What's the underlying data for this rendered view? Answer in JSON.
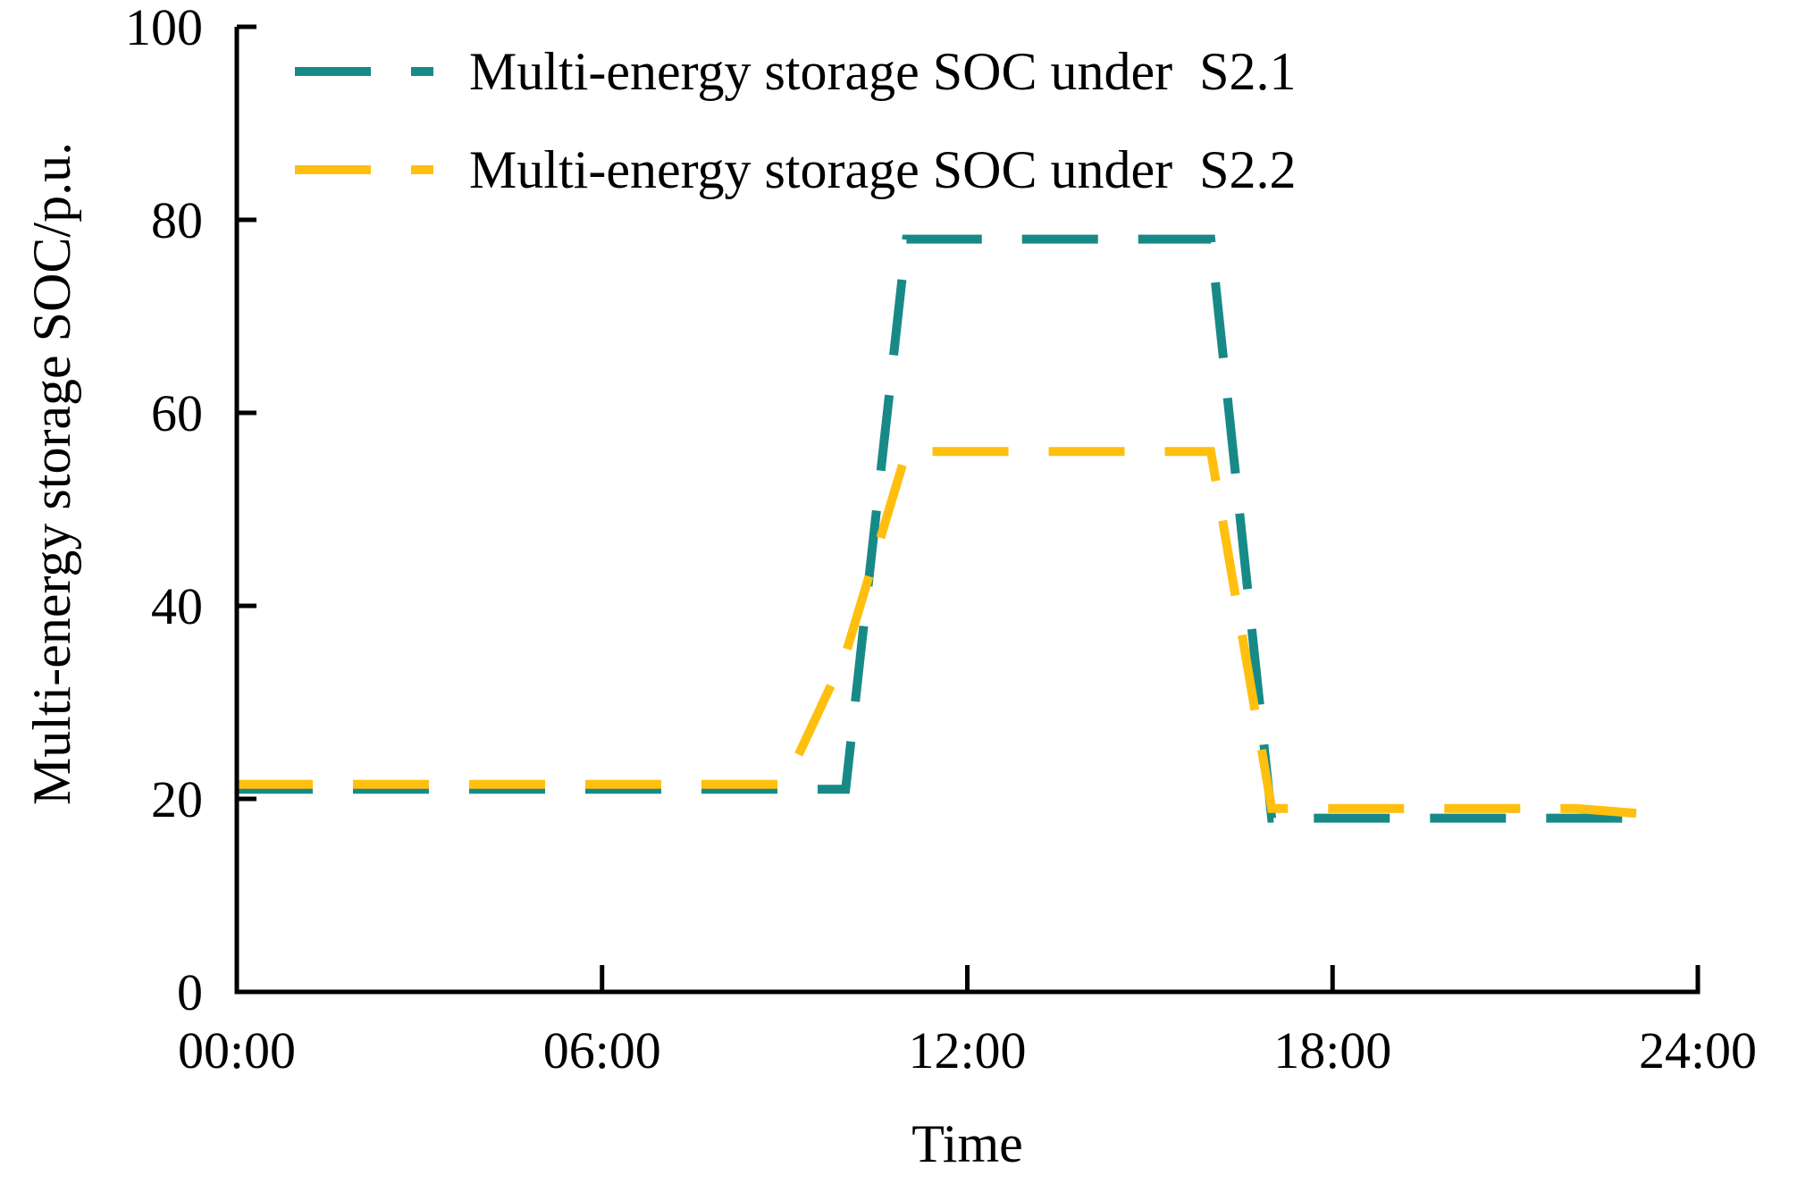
{
  "chart_data": {
    "type": "line",
    "title": "",
    "xlabel": "Time",
    "ylabel": "Multi-energy storage SOC/p.u.",
    "xlim": [
      0,
      24
    ],
    "ylim": [
      0,
      100
    ],
    "x_ticks": [
      {
        "value": 0,
        "label": "00:00"
      },
      {
        "value": 6,
        "label": "06:00"
      },
      {
        "value": 12,
        "label": "12:00"
      },
      {
        "value": 18,
        "label": "18:00"
      },
      {
        "value": 24,
        "label": "24:00"
      }
    ],
    "y_ticks": [
      {
        "value": 0,
        "label": "0"
      },
      {
        "value": 20,
        "label": "20"
      },
      {
        "value": 40,
        "label": "40"
      },
      {
        "value": 60,
        "label": "60"
      },
      {
        "value": 80,
        "label": "80"
      },
      {
        "value": 100,
        "label": "100"
      }
    ],
    "legend_position": "top-left",
    "series": [
      {
        "name": "Multi-energy storage SOC under  S2.1",
        "color": "#178A87",
        "x": [
          0,
          10,
          11,
          12,
          13,
          14,
          15,
          16,
          17,
          18,
          19,
          20,
          21,
          22,
          23
        ],
        "values": [
          21,
          21,
          78,
          78,
          78,
          78,
          78,
          78,
          18,
          18,
          18,
          18,
          18,
          18,
          18
        ]
      },
      {
        "name": "Multi-energy storage SOC under  S2.2",
        "color": "#FFBF0F",
        "x": [
          0,
          9,
          10,
          11,
          12,
          13,
          14,
          15,
          16,
          17,
          18,
          19,
          20,
          21,
          22,
          23
        ],
        "values": [
          21.5,
          21.5,
          35,
          56,
          56,
          56,
          56,
          56,
          56,
          19,
          19,
          19,
          19,
          19,
          19,
          18.5
        ]
      }
    ]
  }
}
